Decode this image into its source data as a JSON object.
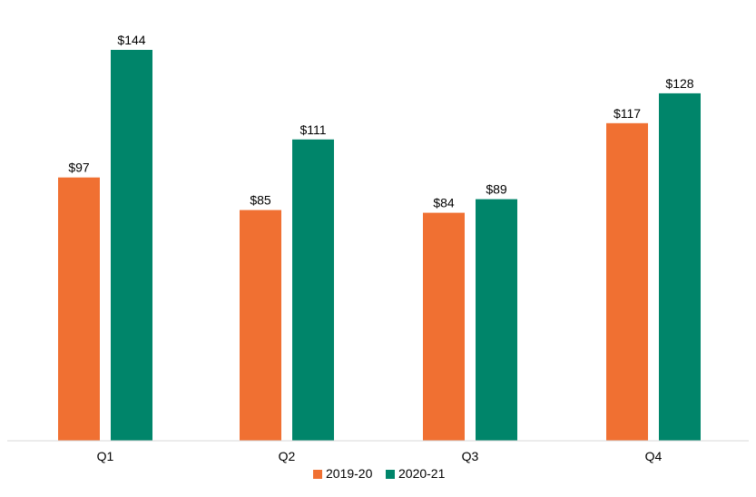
{
  "chart_data": {
    "type": "bar",
    "title": "",
    "xlabel": "",
    "ylabel": "",
    "categories": [
      "Q1",
      "Q2",
      "Q3",
      "Q4"
    ],
    "series": [
      {
        "name": "2019-20",
        "values": [
          97,
          85,
          84,
          117
        ],
        "labels": [
          "$97",
          "$85",
          "$84",
          "$117"
        ],
        "color": "#F07032"
      },
      {
        "name": "2020-21",
        "values": [
          144,
          111,
          89,
          128
        ],
        "labels": [
          "$144",
          "$111",
          "$89",
          "$128"
        ],
        "color": "#00856A"
      }
    ],
    "ylim": [
      0,
      144
    ],
    "grid": false,
    "legend_position": "bottom"
  }
}
